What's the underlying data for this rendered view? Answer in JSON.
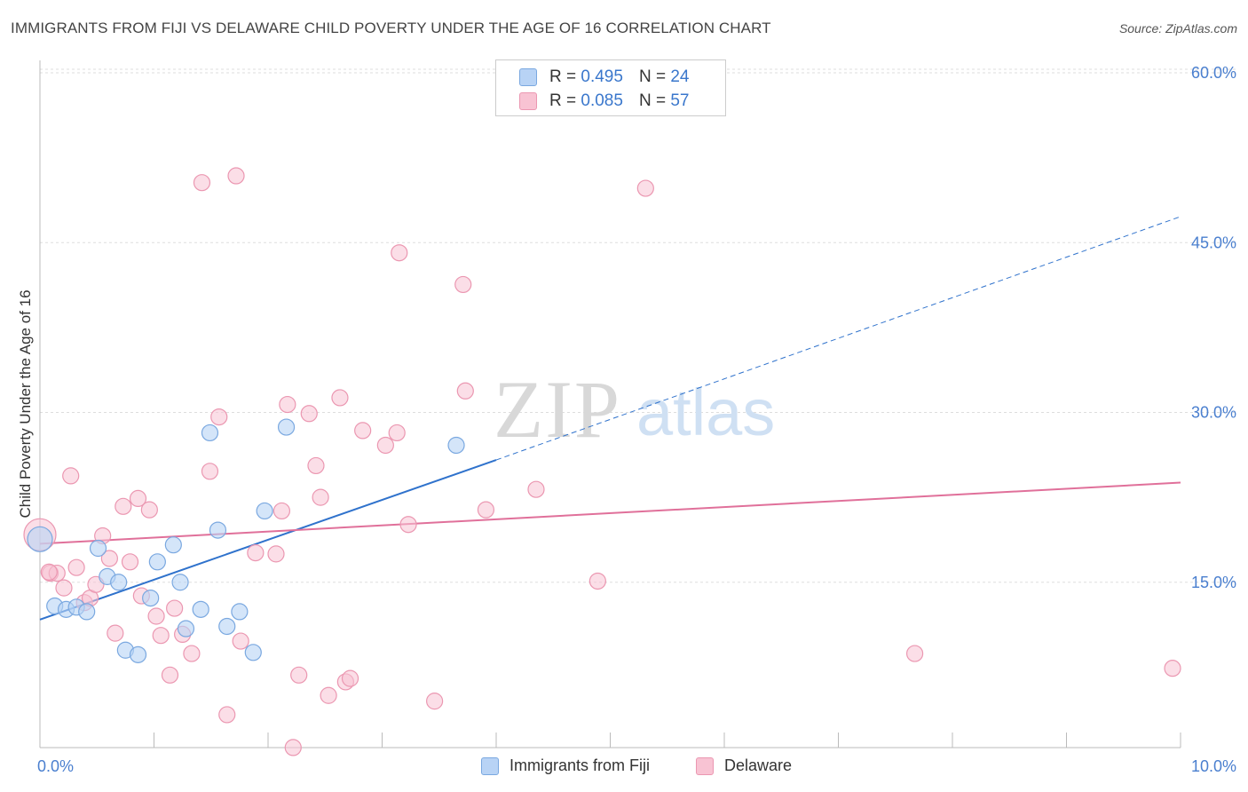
{
  "header": {
    "title": "IMMIGRANTS FROM FIJI VS DELAWARE CHILD POVERTY UNDER THE AGE OF 16 CORRELATION CHART",
    "source": "Source: ZipAtlas.com"
  },
  "watermark": {
    "zip": "ZIP",
    "atlas": "atlas"
  },
  "legend": {
    "rows": [
      {
        "r_label": "R =",
        "r_value": "0.495",
        "n_label": "N =",
        "n_value": "24"
      },
      {
        "r_label": "R =",
        "r_value": "0.085",
        "n_label": "N =",
        "n_value": "57"
      }
    ]
  },
  "bottom_legend": {
    "fiji": "Immigrants from Fiji",
    "delaware": "Delaware"
  },
  "colors": {
    "fiji_fill": "#b8d3f5",
    "fiji_stroke": "#7aa8e0",
    "fiji_line": "#2f72cc",
    "delaware_fill": "#f8c3d3",
    "delaware_stroke": "#eb97b1",
    "delaware_line": "#e0709a",
    "grid": "#dddddd",
    "tick_text": "#4a7fcf"
  },
  "chart_data": {
    "type": "scatter",
    "title": "IMMIGRANTS FROM FIJI VS DELAWARE CHILD POVERTY UNDER THE AGE OF 16 CORRELATION CHART",
    "xlabel": "",
    "ylabel": "Child Poverty Under the Age of 16",
    "xlim": [
      0,
      10
    ],
    "ylim": [
      0,
      60
    ],
    "x_tick_labels": [
      "0.0%",
      "10.0%"
    ],
    "y_ticks": [
      15,
      30,
      45,
      60
    ],
    "y_tick_labels": [
      "15.0%",
      "30.0%",
      "45.0%",
      "60.0%"
    ],
    "grid": true,
    "series": [
      {
        "name": "Immigrants from Fiji",
        "points": [
          [
            0.0,
            18.8
          ],
          [
            0.13,
            12.9
          ],
          [
            0.23,
            12.6
          ],
          [
            0.32,
            12.8
          ],
          [
            0.41,
            12.4
          ],
          [
            0.51,
            18.0
          ],
          [
            0.59,
            15.5
          ],
          [
            0.69,
            15.0
          ],
          [
            0.75,
            9.0
          ],
          [
            0.86,
            8.6
          ],
          [
            0.97,
            13.6
          ],
          [
            1.03,
            16.8
          ],
          [
            1.17,
            18.3
          ],
          [
            1.23,
            15.0
          ],
          [
            1.28,
            10.9
          ],
          [
            1.41,
            12.6
          ],
          [
            1.49,
            28.2
          ],
          [
            1.56,
            19.6
          ],
          [
            1.64,
            11.1
          ],
          [
            1.75,
            12.4
          ],
          [
            1.87,
            8.8
          ],
          [
            1.97,
            21.3
          ],
          [
            2.16,
            28.7
          ],
          [
            3.65,
            27.1
          ]
        ],
        "trend": {
          "x0": 0.0,
          "y0": 11.7,
          "x1": 4.0,
          "y1": 25.8,
          "dashed_to_x": 10.0,
          "dashed_to_y": 47.3
        }
      },
      {
        "name": "Delaware",
        "points": [
          [
            0.0,
            19.2
          ],
          [
            0.09,
            15.8
          ],
          [
            0.15,
            15.8
          ],
          [
            0.21,
            14.5
          ],
          [
            0.27,
            24.4
          ],
          [
            0.32,
            16.3
          ],
          [
            0.39,
            13.2
          ],
          [
            0.44,
            13.6
          ],
          [
            0.49,
            14.8
          ],
          [
            0.55,
            19.1
          ],
          [
            0.61,
            17.1
          ],
          [
            0.66,
            10.5
          ],
          [
            0.73,
            21.7
          ],
          [
            0.79,
            16.8
          ],
          [
            0.86,
            22.4
          ],
          [
            0.89,
            13.8
          ],
          [
            0.96,
            21.4
          ],
          [
            1.02,
            12.0
          ],
          [
            1.06,
            10.3
          ],
          [
            1.14,
            6.8
          ],
          [
            1.18,
            12.7
          ],
          [
            1.25,
            10.4
          ],
          [
            1.33,
            8.7
          ],
          [
            1.42,
            50.3
          ],
          [
            1.49,
            24.8
          ],
          [
            1.57,
            29.6
          ],
          [
            1.64,
            3.3
          ],
          [
            1.72,
            50.9
          ],
          [
            1.76,
            9.8
          ],
          [
            1.89,
            17.6
          ],
          [
            2.07,
            17.5
          ],
          [
            2.12,
            21.3
          ],
          [
            2.17,
            30.7
          ],
          [
            2.22,
            0.4
          ],
          [
            2.27,
            6.8
          ],
          [
            2.36,
            29.9
          ],
          [
            2.42,
            25.3
          ],
          [
            2.46,
            22.5
          ],
          [
            2.53,
            5.0
          ],
          [
            2.63,
            31.3
          ],
          [
            2.68,
            6.2
          ],
          [
            2.72,
            6.5
          ],
          [
            2.83,
            28.4
          ],
          [
            3.03,
            27.1
          ],
          [
            3.13,
            28.2
          ],
          [
            3.15,
            44.1
          ],
          [
            3.23,
            20.1
          ],
          [
            3.46,
            4.5
          ],
          [
            3.71,
            41.3
          ],
          [
            3.73,
            31.9
          ],
          [
            3.91,
            21.4
          ],
          [
            4.35,
            23.2
          ],
          [
            4.89,
            15.1
          ],
          [
            5.31,
            49.8
          ],
          [
            7.67,
            8.7
          ],
          [
            9.93,
            7.4
          ],
          [
            0.08,
            15.9
          ]
        ],
        "trend": {
          "x0": 0.0,
          "y0": 18.4,
          "x1": 10.0,
          "y1": 23.8
        }
      }
    ]
  }
}
